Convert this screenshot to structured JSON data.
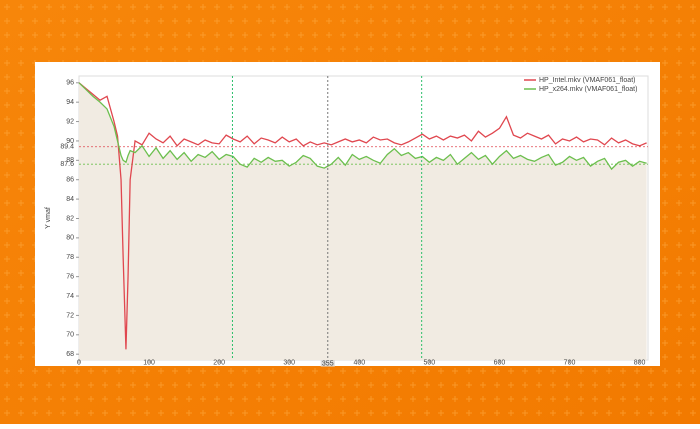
{
  "chart_data": {
    "type": "line",
    "x_label": null,
    "y_label": "Y vmaf",
    "x": [
      0,
      10,
      20,
      30,
      40,
      50,
      55,
      60,
      63,
      67,
      70,
      73,
      80,
      90,
      100,
      110,
      120,
      130,
      140,
      150,
      160,
      170,
      180,
      190,
      200,
      210,
      220,
      230,
      240,
      250,
      260,
      270,
      280,
      290,
      300,
      310,
      320,
      330,
      340,
      350,
      360,
      370,
      380,
      390,
      400,
      410,
      420,
      430,
      440,
      450,
      460,
      470,
      480,
      490,
      500,
      510,
      520,
      530,
      540,
      550,
      560,
      570,
      580,
      590,
      600,
      610,
      620,
      630,
      640,
      650,
      660,
      670,
      680,
      690,
      700,
      710,
      720,
      730,
      740,
      750,
      760,
      770,
      780,
      790,
      800,
      810
    ],
    "series": [
      {
        "name": "HP_Intel.mkv (VMAF061_float)",
        "color": "#e0474f",
        "values": [
          96,
          95.4,
          94.8,
          94.2,
          94.6,
          92,
          90.5,
          86,
          78,
          68.5,
          76,
          86,
          90,
          89.6,
          90.8,
          90.2,
          89.8,
          90.5,
          89.5,
          90.2,
          89.9,
          89.6,
          90.1,
          89.8,
          89.7,
          90.6,
          90.2,
          89.9,
          90.5,
          89.7,
          90.3,
          90.1,
          89.8,
          90.4,
          89.9,
          90.2,
          89.5,
          89.9,
          89.6,
          89.8,
          89.6,
          89.9,
          90.2,
          89.9,
          90.1,
          89.8,
          90.4,
          90.1,
          90.2,
          89.8,
          89.6,
          89.9,
          90.3,
          90.7,
          90.2,
          90.5,
          90.1,
          90.5,
          90.3,
          90.6,
          90,
          91,
          90.4,
          90.8,
          91.3,
          92.5,
          90.6,
          90.3,
          90.8,
          90.5,
          90.2,
          90.6,
          89.7,
          90.2,
          90,
          90.4,
          89.9,
          90.2,
          90.1,
          89.6,
          90.3,
          89.8,
          90.1,
          89.7,
          89.5,
          89.8
        ]
      },
      {
        "name": "HP_x264.mkv (VMAF061_float)",
        "color": "#6cbf4e",
        "values": [
          96,
          95.3,
          94.6,
          94,
          93.3,
          91.5,
          90,
          88.5,
          88,
          87.8,
          88.5,
          89,
          88.8,
          89.5,
          88.4,
          89.3,
          88.2,
          89,
          88.1,
          88.8,
          87.9,
          88.6,
          88.3,
          88.9,
          88.1,
          88.6,
          88.4,
          87.6,
          87.3,
          88.2,
          87.8,
          88.3,
          87.9,
          88,
          87.4,
          87.8,
          88.5,
          88.2,
          87.4,
          87.2,
          87.6,
          88.3,
          87.5,
          88.6,
          88.1,
          88.4,
          88,
          87.7,
          88.6,
          89.2,
          88.5,
          88.8,
          88.2,
          88.4,
          87.8,
          88.3,
          88,
          88.6,
          87.6,
          88.2,
          88.8,
          88.1,
          88.5,
          87.6,
          88.4,
          89,
          88.2,
          88.5,
          88.1,
          87.9,
          88.3,
          88.6,
          87.5,
          87.8,
          88.4,
          88,
          88.3,
          87.4,
          87.9,
          88.2,
          87.1,
          87.8,
          88,
          87.4,
          87.9,
          87.7
        ]
      }
    ],
    "xlim": [
      0,
      812
    ],
    "ylim": [
      67.4,
      96.7
    ],
    "xticks": [
      0,
      100,
      200,
      300,
      400,
      500,
      600,
      700,
      800
    ],
    "yticks": [
      68,
      70,
      72,
      74,
      76,
      78,
      80,
      82,
      84,
      86,
      88,
      90,
      92,
      94,
      96
    ],
    "x_markers": [
      {
        "value": 219,
        "color": "#2cbf6a"
      },
      {
        "value": 355,
        "color": "#777777"
      },
      {
        "value": 489,
        "color": "#2cbf6a"
      }
    ],
    "y_markers": [
      {
        "value": 89.4,
        "color": "#e0474f"
      },
      {
        "value": 87.6,
        "color": "#6cbf4e"
      }
    ],
    "legend": "top-right"
  }
}
